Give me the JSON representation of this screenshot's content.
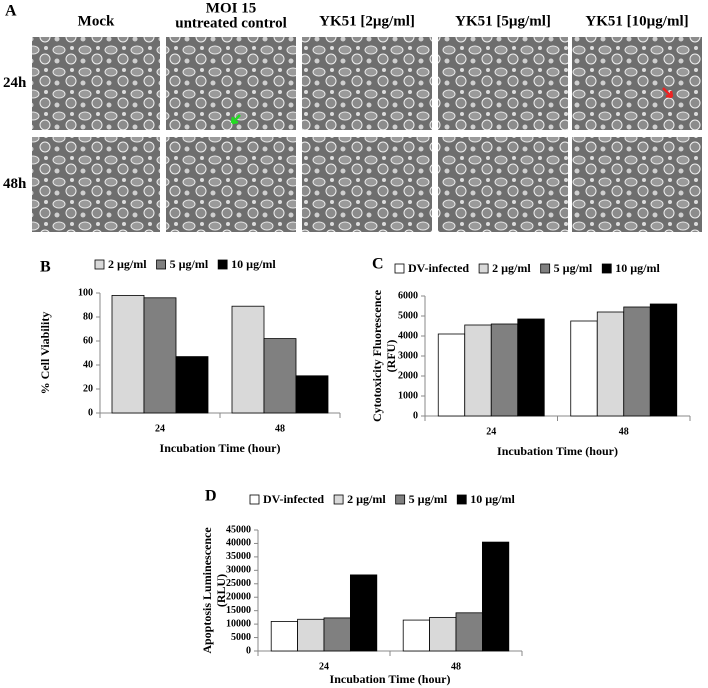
{
  "panel_a": {
    "label": "A",
    "columns": [
      [
        "Mock"
      ],
      [
        "MOI 15",
        "untreated control"
      ],
      [
        "YK51 [2µg/ml]"
      ],
      [
        "YK51 [5µg/ml]"
      ],
      [
        "YK51 [10µg/ml]"
      ]
    ],
    "rows": [
      "24h",
      "48h"
    ]
  },
  "chart_data": [
    {
      "type": "bar",
      "label": "B",
      "categories": [
        "24",
        "48"
      ],
      "series": [
        {
          "name": "2 µg/ml",
          "color": "#d9d9d9",
          "values": [
            98,
            89
          ]
        },
        {
          "name": "5 µg/ml",
          "color": "#808080",
          "values": [
            96,
            62
          ]
        },
        {
          "name": "10 µg/ml",
          "color": "#000000",
          "values": [
            47,
            31
          ]
        }
      ],
      "ylim": [
        0,
        100
      ],
      "yticks": [
        0,
        20,
        40,
        60,
        80,
        100
      ],
      "ylabel": [
        "% Cell Viability"
      ],
      "xlabel": "Incubation Time (hour)",
      "grid": false
    },
    {
      "type": "bar",
      "label": "C",
      "categories": [
        "24",
        "48"
      ],
      "series": [
        {
          "name": "DV-infected",
          "color": "#ffffff",
          "values": [
            4100,
            4750
          ]
        },
        {
          "name": "2 µg/ml",
          "color": "#d9d9d9",
          "values": [
            4550,
            5200
          ]
        },
        {
          "name": "5 µg/ml",
          "color": "#808080",
          "values": [
            4600,
            5450
          ]
        },
        {
          "name": "10 µg/ml",
          "color": "#000000",
          "values": [
            4850,
            5600
          ]
        }
      ],
      "ylim": [
        0,
        6000
      ],
      "yticks": [
        0,
        1000,
        2000,
        3000,
        4000,
        5000,
        6000
      ],
      "ylabel": [
        "Cytotoxicity Fluorescence",
        "(RFU)"
      ],
      "xlabel": "Incubation Time (hour)",
      "grid": false
    },
    {
      "type": "bar",
      "label": "D",
      "categories": [
        "24",
        "48"
      ],
      "series": [
        {
          "name": "DV-infected",
          "color": "#ffffff",
          "values": [
            11000,
            11500
          ]
        },
        {
          "name": "2 µg/ml",
          "color": "#d9d9d9",
          "values": [
            11800,
            12500
          ]
        },
        {
          "name": "5 µg/ml",
          "color": "#808080",
          "values": [
            12300,
            14200
          ]
        },
        {
          "name": "10 µg/ml",
          "color": "#000000",
          "values": [
            28300,
            40500
          ]
        }
      ],
      "ylim": [
        0,
        45000
      ],
      "yticks": [
        0,
        5000,
        10000,
        15000,
        20000,
        25000,
        30000,
        35000,
        40000,
        45000
      ],
      "ylabel": [
        "Apoptosis Luminescence",
        "(RLU)"
      ],
      "xlabel": "Incubation Time (hour)",
      "grid": false
    }
  ]
}
